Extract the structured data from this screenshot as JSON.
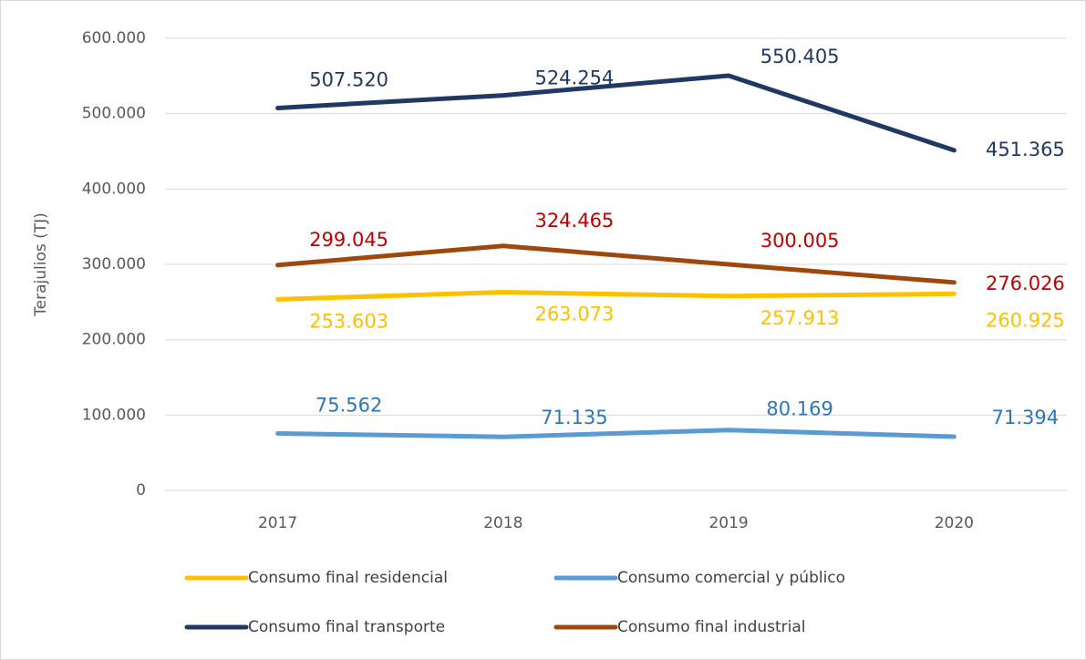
{
  "chart_data": {
    "type": "line",
    "y_label": "Terajulios (TJ)",
    "categories": [
      "2017",
      "2018",
      "2019",
      "2020"
    ],
    "series": [
      {
        "name": "Consumo final residencial",
        "color": "#ffc000",
        "label_color": "#ffc000",
        "values": [
          253603,
          263073,
          257913,
          260925
        ],
        "value_labels": [
          "253.603",
          "263.073",
          "257.913",
          "260.925"
        ]
      },
      {
        "name": "Consumo comercial y público",
        "color": "#5b9bd5",
        "label_color": "#2e75b6",
        "values": [
          75562,
          71135,
          80169,
          71394
        ],
        "value_labels": [
          "75.562",
          "71.135",
          "80.169",
          "71.394"
        ]
      },
      {
        "name": "Consumo final transporte",
        "color": "#203864",
        "label_color": "#203864",
        "values": [
          507520,
          524254,
          550405,
          451365
        ],
        "value_labels": [
          "507.520",
          "524.254",
          "550.405",
          "451.365"
        ]
      },
      {
        "name": "Consumo final industrial",
        "color": "#9e480e",
        "label_color": "#c00000",
        "values": [
          299045,
          324465,
          300005,
          276026
        ],
        "value_labels": [
          "299.045",
          "324.465",
          "300.005",
          "276.026"
        ]
      }
    ],
    "ylim": [
      0,
      600000
    ],
    "yticks": [
      0,
      {
        "value": 100000,
        "label": "100.000"
      },
      {
        "value": 200000,
        "label": "200.000"
      },
      {
        "value": 300000,
        "label": "300.000"
      },
      {
        "value": 400000,
        "label": "400.000"
      },
      {
        "value": 500000,
        "label": "500.000"
      },
      {
        "value": 600000,
        "label": "600.000"
      }
    ],
    "grid": true
  }
}
